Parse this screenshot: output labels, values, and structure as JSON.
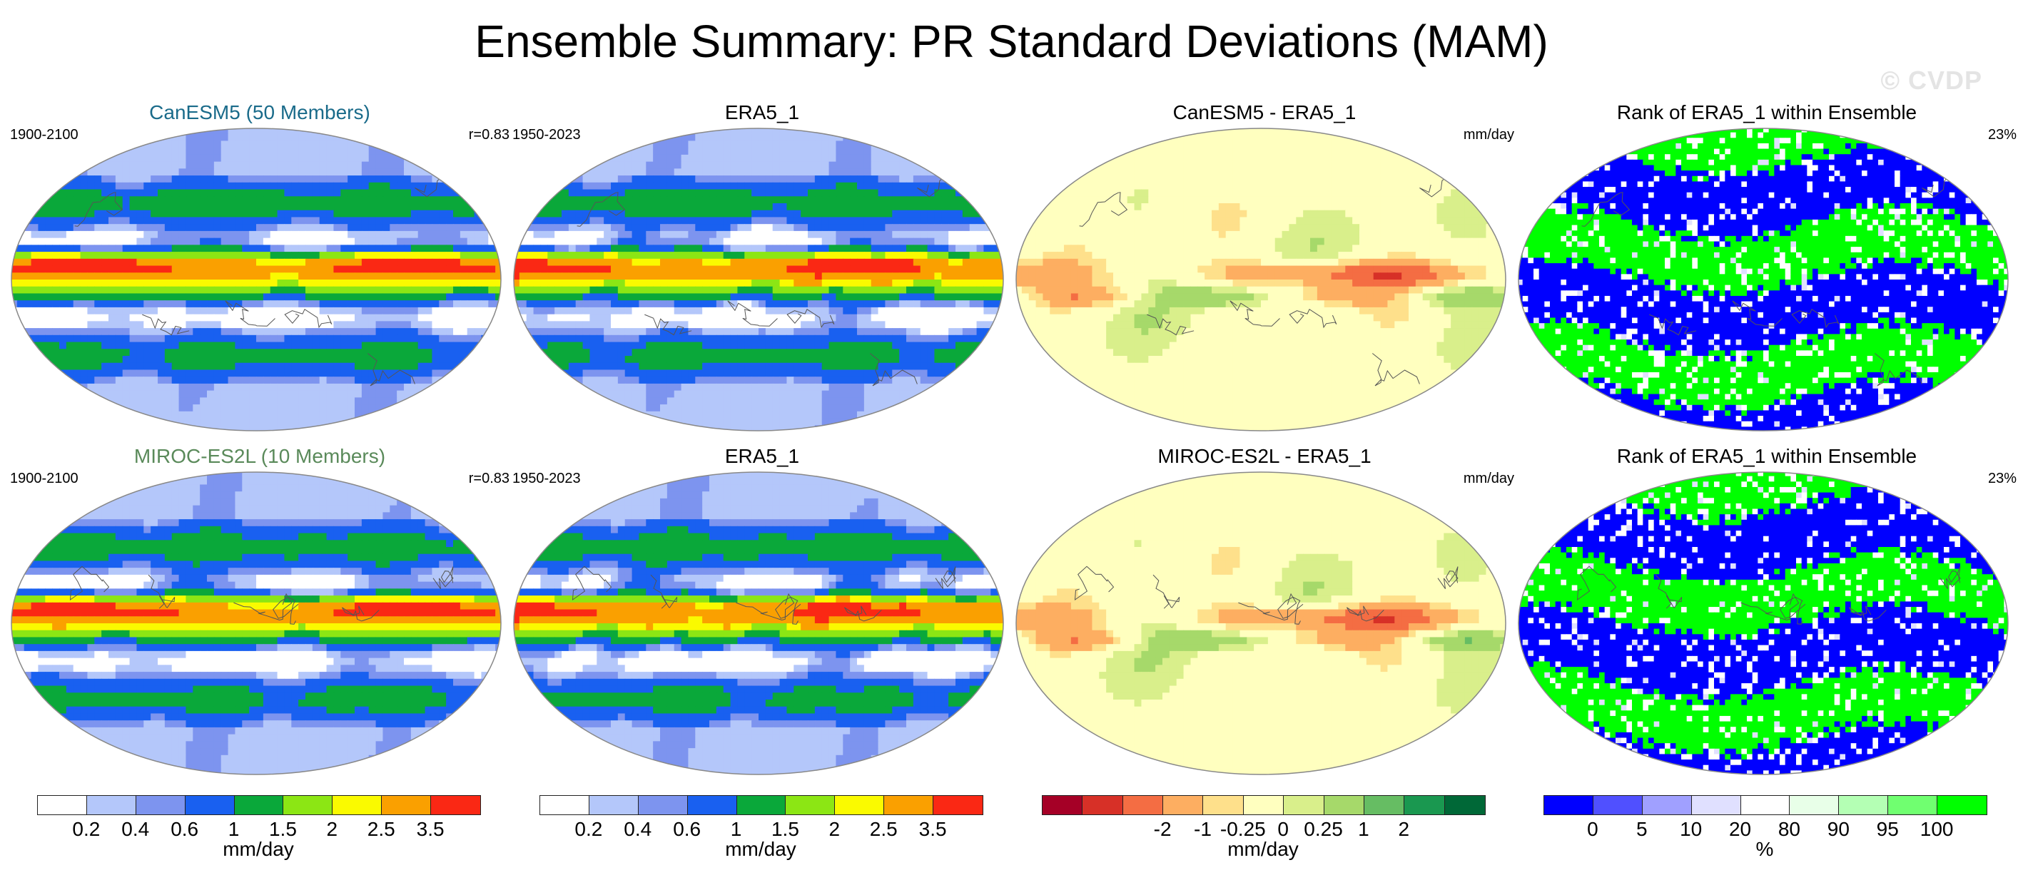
{
  "title": "Ensemble Summary: PR Standard Deviations (MAM)",
  "watermark": "© CVDP",
  "colors": {
    "seq": [
      "#ffffff",
      "#b4c7fa",
      "#7d94ef",
      "#1960f0",
      "#0aa83a",
      "#8ce614",
      "#fafa00",
      "#faa000",
      "#fa2814"
    ],
    "div": [
      "#a50026",
      "#d73027",
      "#f46d43",
      "#fdae61",
      "#fee08b",
      "#ffffbf",
      "#d9ef8b",
      "#a6d96a",
      "#66bd63",
      "#1a9850",
      "#006837"
    ],
    "rank": [
      "#0000ff",
      "#5050ff",
      "#a0a0ff",
      "#e0e0ff",
      "#ffffff",
      "#e8ffe8",
      "#b4ffb4",
      "#70ff70",
      "#00ff00"
    ]
  },
  "panels": [
    {
      "id": "r1c1",
      "title": "CanESM5 (50 Members)",
      "title_color": "#1a6b8a",
      "left": "1900-2100",
      "right": "r=0.83",
      "kind": "model"
    },
    {
      "id": "r1c2",
      "title": "ERA5_1",
      "title_color": "#000000",
      "left": "1950-2023",
      "right": "",
      "kind": "obs"
    },
    {
      "id": "r1c3",
      "title": "CanESM5 - ERA5_1",
      "title_color": "#000000",
      "left": "",
      "right": "mm/day",
      "kind": "diff"
    },
    {
      "id": "r1c4",
      "title": "Rank of ERA5_1 within Ensemble",
      "title_color": "#000000",
      "left": "",
      "right": "23%",
      "kind": "rank"
    },
    {
      "id": "r2c1",
      "title": "MIROC-ES2L (10 Members)",
      "title_color": "#5a8a5a",
      "left": "1900-2100",
      "right": "r=0.83",
      "kind": "model"
    },
    {
      "id": "r2c2",
      "title": "ERA5_1",
      "title_color": "#000000",
      "left": "1950-2023",
      "right": "",
      "kind": "obs"
    },
    {
      "id": "r2c3",
      "title": "MIROC-ES2L - ERA5_1",
      "title_color": "#000000",
      "left": "",
      "right": "mm/day",
      "kind": "diff"
    },
    {
      "id": "r2c4",
      "title": "Rank of ERA5_1 within Ensemble",
      "title_color": "#000000",
      "left": "",
      "right": "23%",
      "kind": "rank"
    }
  ],
  "colorbars": [
    {
      "id": "cb1",
      "palette": "seq",
      "ticks": [
        "0.2",
        "0.4",
        "0.6",
        "1",
        "1.5",
        "2",
        "2.5",
        "3.5"
      ],
      "unit": "mm/day"
    },
    {
      "id": "cb2",
      "palette": "seq",
      "ticks": [
        "0.2",
        "0.4",
        "0.6",
        "1",
        "1.5",
        "2",
        "2.5",
        "3.5"
      ],
      "unit": "mm/day"
    },
    {
      "id": "cb3",
      "palette": "div",
      "ticks": [
        "-2",
        "-1",
        "-0.25",
        "0",
        "0.25",
        "1",
        "2"
      ],
      "unit": "mm/day"
    },
    {
      "id": "cb4",
      "palette": "rank",
      "ticks": [
        "0",
        "5",
        "10",
        "20",
        "80",
        "90",
        "95",
        "100"
      ],
      "unit": "%"
    }
  ],
  "chart_data": [
    {
      "type": "heatmap",
      "title": "CanESM5 (50 Members)",
      "subtitle_left": "1900-2100",
      "subtitle_right": "r=0.83",
      "units": "mm/day",
      "levels": [
        0.2,
        0.4,
        0.6,
        1,
        1.5,
        2,
        2.5,
        3.5
      ]
    },
    {
      "type": "heatmap",
      "title": "ERA5_1",
      "subtitle_left": "1950-2023",
      "units": "mm/day",
      "levels": [
        0.2,
        0.4,
        0.6,
        1,
        1.5,
        2,
        2.5,
        3.5
      ]
    },
    {
      "type": "heatmap",
      "title": "CanESM5 - ERA5_1",
      "units": "mm/day",
      "levels": [
        -2,
        -1,
        -0.25,
        0,
        0.25,
        1,
        2
      ]
    },
    {
      "type": "heatmap",
      "title": "Rank of ERA5_1 within Ensemble",
      "subtitle_right": "23%",
      "units": "%",
      "levels": [
        0,
        5,
        10,
        20,
        80,
        90,
        95,
        100
      ]
    },
    {
      "type": "heatmap",
      "title": "MIROC-ES2L (10 Members)",
      "subtitle_left": "1900-2100",
      "subtitle_right": "r=0.83",
      "units": "mm/day",
      "levels": [
        0.2,
        0.4,
        0.6,
        1,
        1.5,
        2,
        2.5,
        3.5
      ]
    },
    {
      "type": "heatmap",
      "title": "ERA5_1",
      "subtitle_left": "1950-2023",
      "units": "mm/day",
      "levels": [
        0.2,
        0.4,
        0.6,
        1,
        1.5,
        2,
        2.5,
        3.5
      ]
    },
    {
      "type": "heatmap",
      "title": "MIROC-ES2L - ERA5_1",
      "units": "mm/day",
      "levels": [
        -2,
        -1,
        -0.25,
        0,
        0.25,
        1,
        2
      ]
    },
    {
      "type": "heatmap",
      "title": "Rank of ERA5_1 within Ensemble",
      "subtitle_right": "23%",
      "units": "%",
      "levels": [
        0,
        5,
        10,
        20,
        80,
        90,
        95,
        100
      ]
    }
  ]
}
